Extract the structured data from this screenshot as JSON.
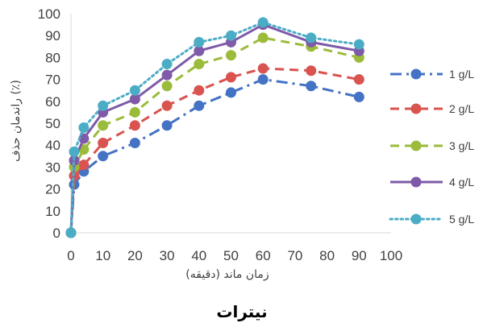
{
  "chart_data": {
    "type": "line",
    "caption": "نیترات",
    "xlabel": "زمان ماند (دقیقه)",
    "ylabel": "راندمان حذف (٪)",
    "xlim": [
      0,
      100
    ],
    "ylim": [
      0,
      100
    ],
    "x_ticks": [
      "0",
      "10",
      "20",
      "30",
      "40",
      "50",
      "60",
      "70",
      "80",
      "90",
      "100"
    ],
    "y_ticks": [
      "0",
      "10",
      "20",
      "30",
      "40",
      "50",
      "60",
      "70",
      "80",
      "90",
      "100"
    ],
    "grid": false,
    "legend_position": "right",
    "x": [
      0,
      1,
      4,
      10,
      20,
      30,
      40,
      50,
      60,
      75,
      90
    ],
    "series": [
      {
        "name": "1 g/L",
        "color": "#4472C4",
        "dash": "dash-dot",
        "values": [
          0,
          22,
          28,
          35,
          41,
          49,
          58,
          64,
          70,
          67,
          62
        ]
      },
      {
        "name": "2 g/L",
        "color": "#D9534F",
        "dash": "dash",
        "values": [
          0,
          26,
          31,
          41,
          49,
          58,
          65,
          71,
          75,
          74,
          70
        ]
      },
      {
        "name": "3 g/L",
        "color": "#9BBB3B",
        "dash": "dash",
        "values": [
          0,
          30,
          38,
          49,
          55,
          67,
          77,
          81,
          89,
          85,
          80
        ]
      },
      {
        "name": "4 g/L",
        "color": "#7E5AA8",
        "dash": "solid",
        "values": [
          0,
          33,
          43,
          55,
          61,
          72,
          83,
          87,
          95,
          87,
          83
        ]
      },
      {
        "name": "5 g/L",
        "color": "#4BACC6",
        "dash": "dot",
        "values": [
          0,
          37,
          48,
          58,
          65,
          77,
          87,
          90,
          96,
          89,
          86
        ]
      }
    ]
  }
}
